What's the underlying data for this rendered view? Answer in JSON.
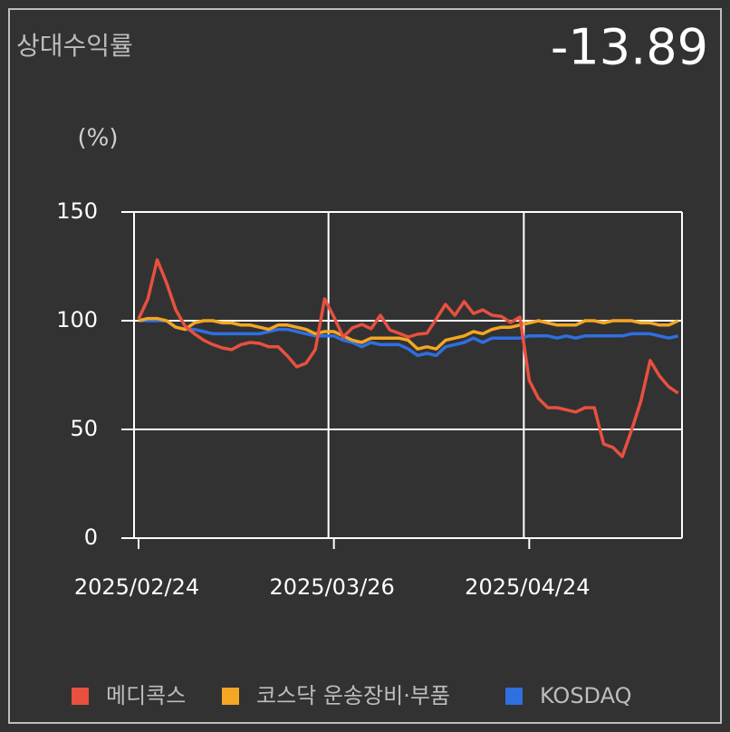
{
  "chart_data": {
    "type": "line",
    "title": "상대수익률",
    "headline_value": -13.89,
    "y_label": "(%)",
    "categories": [
      "2025/02/24",
      null,
      null,
      null,
      null,
      null,
      null,
      null,
      null,
      null,
      null,
      null,
      null,
      null,
      null,
      null,
      null,
      null,
      null,
      null,
      null,
      "2025/03/26",
      null,
      null,
      null,
      null,
      null,
      null,
      null,
      null,
      null,
      null,
      null,
      null,
      null,
      null,
      null,
      null,
      null,
      null,
      null,
      null,
      "2025/04/24",
      null,
      null,
      null,
      null,
      null,
      null,
      null,
      null,
      null,
      null,
      null,
      null,
      null,
      null,
      null,
      null
    ],
    "series": [
      {
        "name": "메디콕스",
        "color": "#e8503f",
        "values": [
          100.8,
          110,
          128,
          117.5,
          105,
          97.5,
          94,
          91,
          89,
          87.5,
          86.7,
          89,
          90,
          89.6,
          88,
          88,
          83.8,
          78.8,
          80.4,
          86.7,
          110,
          101.7,
          92.5,
          96.7,
          98.3,
          96.3,
          102.5,
          95.8,
          94.2,
          92.5,
          93.8,
          94.2,
          100.8,
          107.5,
          102.5,
          108.8,
          103.3,
          105,
          102.5,
          102,
          99.2,
          101.7,
          72.5,
          64.2,
          60,
          60,
          59,
          58,
          60,
          60,
          43.3,
          41.7,
          37.5,
          49.6,
          63,
          81.7,
          74.6,
          69.6,
          66.7
        ]
      },
      {
        "name": "코스닥 운송장비·부품",
        "color": "#f5a623",
        "values": [
          100,
          101,
          101,
          100,
          97,
          96,
          99,
          100,
          100,
          99,
          99,
          98,
          98,
          97,
          96,
          98,
          98,
          97,
          96,
          94,
          95,
          95,
          93,
          91,
          90,
          92,
          92,
          92,
          92,
          91,
          87,
          88,
          87,
          91,
          92,
          93,
          95,
          94,
          96,
          97,
          97,
          98,
          99,
          100,
          99,
          98,
          98,
          98,
          100,
          100,
          99,
          100,
          100,
          100,
          99,
          99,
          98,
          98,
          100
        ]
      },
      {
        "name": "KOSDAQ",
        "color": "#2f6fe0",
        "values": [
          100,
          100,
          100,
          100,
          97,
          96,
          96,
          95,
          94,
          94,
          94,
          94,
          94,
          94,
          95,
          96,
          96,
          95,
          94,
          93,
          93,
          93,
          91,
          90,
          88,
          90,
          89,
          89,
          89,
          87,
          84,
          85,
          84,
          88,
          89,
          90,
          92,
          90,
          92,
          92,
          92,
          92,
          93,
          93,
          93,
          92,
          93,
          92,
          93,
          93,
          93,
          93,
          93,
          94,
          94,
          94,
          93,
          92,
          93
        ]
      }
    ],
    "ylim": [
      0,
      150
    ],
    "yticks": [
      0,
      50,
      100,
      150
    ],
    "grid": true
  }
}
